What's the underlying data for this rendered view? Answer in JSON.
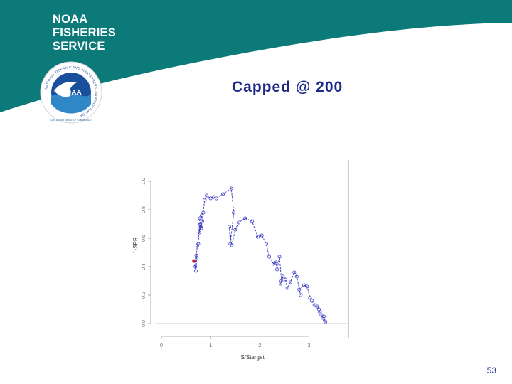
{
  "brand": {
    "line1": "NOAA",
    "line2": "FISHERIES",
    "line3": "SERVICE"
  },
  "logo": {
    "center_text": "NOAA",
    "ring_text": "NATIONAL OCEANIC AND ATMOSPHERIC ADMINISTRATION",
    "bottom_text": "U.S. DEPARTMENT OF COMMERCE"
  },
  "slide": {
    "title": "Capped @ 200",
    "page_number": "53"
  },
  "colors": {
    "header_teal": "#0b7a78",
    "title": "#1d2a8a",
    "series": "#3535c0",
    "highlight_point": "#c0202a"
  },
  "chart_data": {
    "type": "line",
    "xlabel": "S/Starget",
    "ylabel": "1-SPR",
    "xlim": [
      -0.1,
      3.8
    ],
    "ylim": [
      -0.05,
      1.15
    ],
    "x_ticks": [
      0,
      1,
      2,
      3
    ],
    "x_tick_labels": [
      "0",
      "1",
      "2",
      "3"
    ],
    "y_ticks": [
      0.0,
      0.2,
      0.4,
      0.6,
      0.8,
      1.0
    ],
    "y_tick_labels": [
      "0.0",
      "0.2",
      "0.4",
      "0.6",
      "0.8",
      "1.0"
    ],
    "grid": false,
    "reference_line_y": 0.0,
    "series": [
      {
        "x": [
          0.66,
          0.7,
          0.72,
          0.71,
          0.69,
          0.73,
          0.75,
          0.78,
          0.8,
          0.77,
          0.82,
          0.85,
          0.83,
          0.79,
          0.81,
          0.88,
          0.92,
          1.0,
          1.06,
          1.12,
          1.25,
          1.42,
          1.47,
          1.4,
          1.38,
          1.43,
          1.5,
          1.57,
          1.7,
          1.84,
          1.96,
          2.04,
          2.13,
          2.19,
          2.28,
          2.33,
          2.35,
          2.4,
          2.44,
          2.42,
          2.47,
          2.52,
          2.56,
          2.62,
          2.7,
          2.75,
          2.83,
          2.8,
          2.9,
          2.96,
          3.02,
          3.06,
          3.11,
          3.16,
          3.2,
          3.22,
          3.25,
          3.28,
          3.3,
          3.32,
          3.33
        ],
        "y": [
          0.44,
          0.37,
          0.46,
          0.48,
          0.4,
          0.55,
          0.56,
          0.74,
          0.68,
          0.64,
          0.76,
          0.78,
          0.72,
          0.7,
          0.67,
          0.87,
          0.9,
          0.88,
          0.89,
          0.88,
          0.91,
          0.95,
          0.78,
          0.56,
          0.68,
          0.55,
          0.66,
          0.71,
          0.74,
          0.72,
          0.61,
          0.62,
          0.56,
          0.47,
          0.42,
          0.43,
          0.38,
          0.47,
          0.3,
          0.28,
          0.33,
          0.31,
          0.25,
          0.29,
          0.36,
          0.33,
          0.2,
          0.24,
          0.27,
          0.26,
          0.18,
          0.16,
          0.13,
          0.12,
          0.1,
          0.08,
          0.06,
          0.04,
          0.05,
          0.02,
          0.01
        ],
        "highlight_index": 0
      }
    ]
  }
}
